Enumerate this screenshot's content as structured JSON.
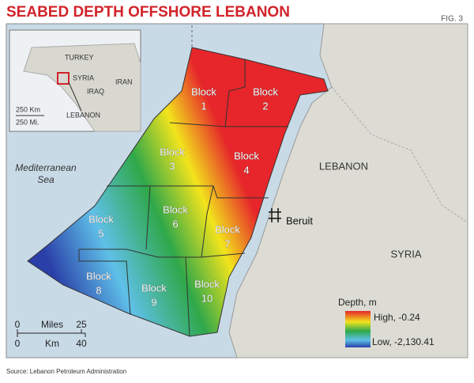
{
  "header": {
    "title": "SEABED DEPTH OFFSHORE LEBANON",
    "figure": "FIG. 3"
  },
  "inset": {
    "labels": [
      "TURKEY",
      "SYRIA",
      "IRAN",
      "IRAQ",
      "LEBANON"
    ],
    "scale": [
      "250 Km",
      "250 Mi."
    ]
  },
  "map": {
    "sea": [
      "Mediterranean",
      "Sea"
    ],
    "countries": [
      "LEBANON",
      "SYRIA"
    ],
    "city": "Beruit",
    "blocks": [
      {
        "label": "Block",
        "number": 1
      },
      {
        "label": "Block",
        "number": 2
      },
      {
        "label": "Block",
        "number": 3
      },
      {
        "label": "Block",
        "number": 4
      },
      {
        "label": "Block",
        "number": 5
      },
      {
        "label": "Block",
        "number": 6
      },
      {
        "label": "Block",
        "number": 7
      },
      {
        "label": "Block",
        "number": 8
      },
      {
        "label": "Block",
        "number": 9
      },
      {
        "label": "Block",
        "number": 10
      }
    ]
  },
  "legend": {
    "title": "Depth, m",
    "high": "High, -0.24",
    "low": "Low, -2,130.41"
  },
  "scale": {
    "miles": [
      "0",
      "Miles",
      "25"
    ],
    "km": [
      "0",
      "Km",
      "40"
    ]
  },
  "source": "Source: Lebanon Petroleum Administration"
}
